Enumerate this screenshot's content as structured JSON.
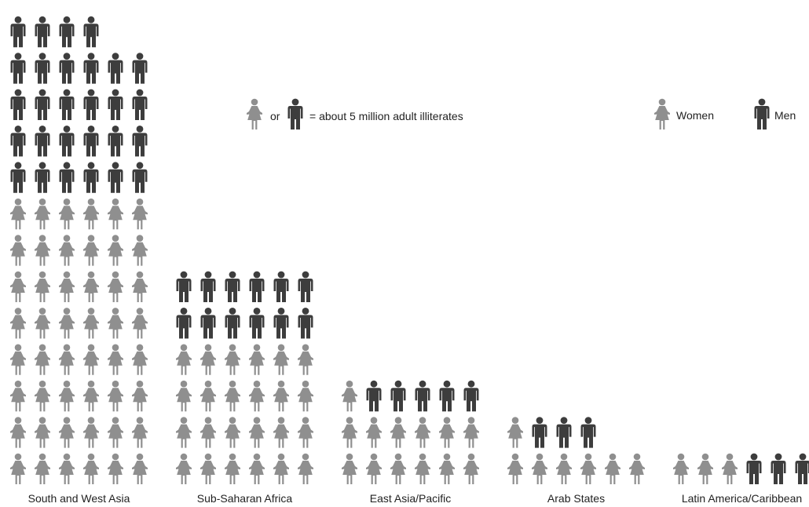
{
  "chart_data": {
    "type": "pictograph",
    "unit_caption": "= about 5 million adult illiterates",
    "unit_or_text": "or",
    "legend": [
      {
        "name": "Women",
        "icon": "woman-icon"
      },
      {
        "name": "Men",
        "icon": "man-icon"
      }
    ],
    "icons_per_row": 6,
    "unit_value_millions": 5,
    "colors": {
      "women": "#8f8f8f",
      "men": "#3d3d3d"
    },
    "series": [
      {
        "category": "South and West Asia",
        "women": 48,
        "men": 28
      },
      {
        "category": "Sub-Saharan Africa",
        "women": 24,
        "men": 12
      },
      {
        "category": "East Asia/Pacific",
        "women": 13,
        "men": 5
      },
      {
        "category": "Arab States",
        "women": 7,
        "men": 3
      },
      {
        "category": "Latin America/Caribbean",
        "women": 3,
        "men": 3
      }
    ]
  }
}
